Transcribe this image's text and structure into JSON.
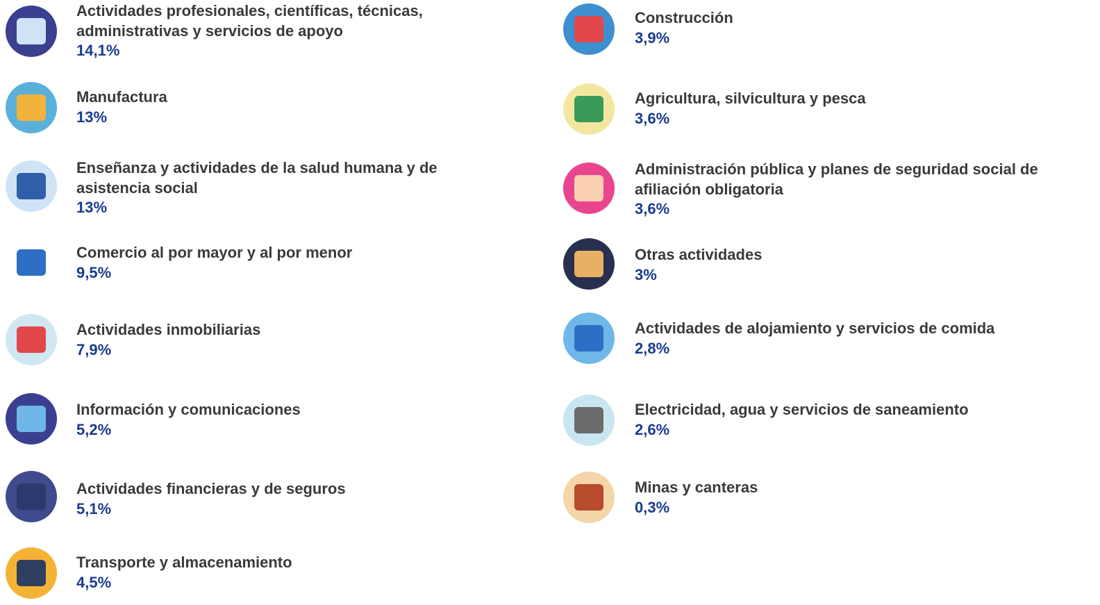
{
  "left": [
    {
      "label": "Actividades profesionales, científicas, técnicas, administrativas y servicios de apoyo",
      "value": "14,1%"
    },
    {
      "label": "Manufactura",
      "value": "13%"
    },
    {
      "label": "Enseñanza y actividades de la salud humana y de asistencia social",
      "value": "13%"
    },
    {
      "label": "Comercio al por mayor y al por menor",
      "value": "9,5%"
    },
    {
      "label": "Actividades inmobiliarias",
      "value": "7,9%"
    },
    {
      "label": "Información y comunicaciones",
      "value": "5,2%"
    },
    {
      "label": "Actividades financieras y de seguros",
      "value": "5,1%"
    },
    {
      "label": "Transporte y almacenamiento",
      "value": "4,5%"
    }
  ],
  "right": [
    {
      "label": "Construcción",
      "value": "3,9%"
    },
    {
      "label": "Agricultura, silvicultura y pesca",
      "value": "3,6%"
    },
    {
      "label": "Administración pública y planes de seguridad social de afiliación obligatoria",
      "value": "3,6%"
    },
    {
      "label": "Otras actividades",
      "value": "3%"
    },
    {
      "label": "Actividades de alojamiento y servicios de comida",
      "value": "2,8%"
    },
    {
      "label": "Electricidad, agua y servicios de saneamiento",
      "value": "2,6%"
    },
    {
      "label": "Minas y canteras",
      "value": "0,3%"
    }
  ]
}
